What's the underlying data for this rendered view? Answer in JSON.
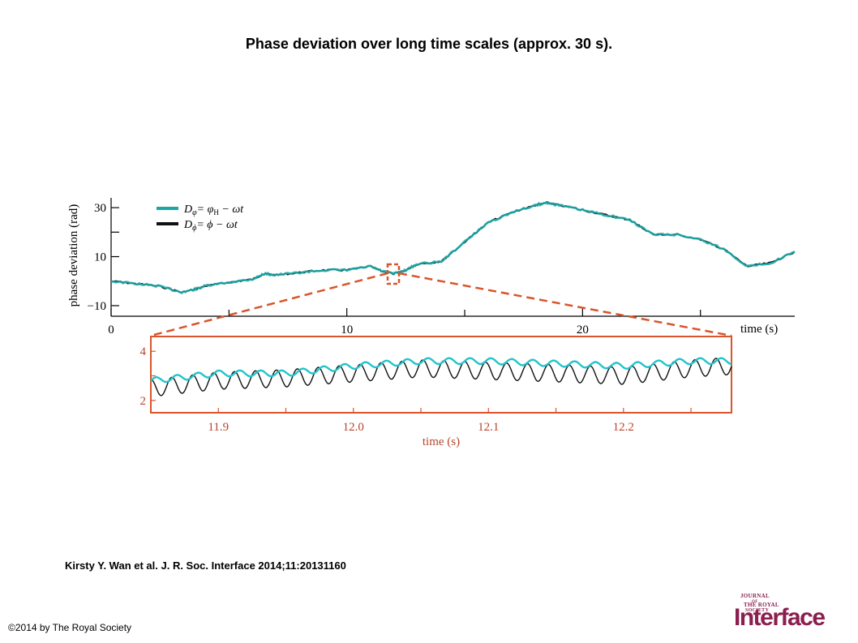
{
  "slide": {
    "title": "Phase deviation over long time scales (approx. 30 s).",
    "citation": "Kirsty Y. Wan et al. J. R. Soc. Interface 2014;11:20131160",
    "copyright": "©2014 by The Royal Society",
    "logo": {
      "line1": "JOURNAL",
      "line2": "OF",
      "line3": "THE ROYAL",
      "line4": "SOCIETY",
      "wordmark": "Interface"
    }
  },
  "colors": {
    "teal": "#1aa6a6",
    "teal_dark": "#0b6f6f",
    "black_trace": "#111111",
    "inset_frame": "#d9552b",
    "inset_axis_text": "#b5452a",
    "cyan_trace": "#22c4cc"
  },
  "chart_data": [
    {
      "type": "line",
      "title": "",
      "xlabel": "time (s)",
      "ylabel": "phase deviation (rad)",
      "xlim": [
        0,
        29
      ],
      "ylim": [
        -13,
        34
      ],
      "x_ticks": [
        0,
        10,
        20
      ],
      "y_ticks": [
        -10,
        10,
        30
      ],
      "grid": false,
      "legend_position": "top-left",
      "legend": [
        {
          "symbol": "D",
          "subscript": "φ",
          "rhs": "= φ",
          "rhs_sub": "H",
          "rhs_tail": " − ωt"
        },
        {
          "symbol": "D",
          "subscript": "ϕ",
          "rhs": "= ϕ",
          "rhs_sub": "",
          "rhs_tail": " − ωt"
        }
      ],
      "x": [
        0,
        1,
        2,
        3,
        3.5,
        4,
        5,
        6,
        6.5,
        7,
        8,
        9,
        10,
        11,
        11.5,
        12,
        12.5,
        13,
        14,
        15,
        16,
        17,
        18,
        18.5,
        19,
        20,
        21,
        22,
        23,
        24,
        25,
        26,
        27,
        28,
        29
      ],
      "series": [
        {
          "name": "Dφ = φH − ωt",
          "values": [
            0,
            -1,
            -2,
            -4.5,
            -3.5,
            -2,
            -0.5,
            0.8,
            3,
            2.5,
            3.5,
            4.5,
            4.5,
            6,
            4,
            3,
            4.5,
            7,
            8,
            16,
            24,
            28,
            31,
            32,
            31,
            29,
            27,
            25,
            19,
            19,
            17,
            13,
            6,
            7.5,
            12
          ]
        },
        {
          "name": "Dϕ = ϕ − ωt",
          "values": [
            0,
            -1,
            -2,
            -4.5,
            -3.5,
            -2,
            -0.5,
            0.8,
            3,
            2.5,
            3.5,
            4.5,
            4.5,
            6,
            4,
            3,
            4.5,
            7,
            8,
            16,
            24,
            28,
            31,
            32,
            31,
            29,
            27,
            25,
            19,
            19,
            17,
            13,
            6,
            7.5,
            12
          ]
        }
      ]
    },
    {
      "type": "line",
      "title": "",
      "xlabel": "time (s)",
      "ylabel": "",
      "xlim": [
        11.85,
        12.28
      ],
      "ylim": [
        1.5,
        4.6
      ],
      "x_ticks": [
        11.9,
        12.0,
        12.1,
        12.2
      ],
      "y_ticks": [
        2,
        4
      ],
      "grid": false,
      "legend_position": "none",
      "x": [
        11.85,
        11.9,
        11.95,
        12.0,
        12.05,
        12.1,
        12.15,
        12.2,
        12.25,
        12.28
      ],
      "series": [
        {
          "name": "Dφ = φH − ωt",
          "values": [
            2.8,
            3.1,
            3.1,
            3.4,
            3.6,
            3.6,
            3.5,
            3.4,
            3.6,
            3.6
          ]
        },
        {
          "name": "Dϕ = ϕ − ωt",
          "values": [
            2.5,
            2.8,
            2.9,
            3.1,
            3.3,
            3.2,
            3.1,
            3.0,
            3.3,
            3.4
          ]
        }
      ]
    }
  ]
}
